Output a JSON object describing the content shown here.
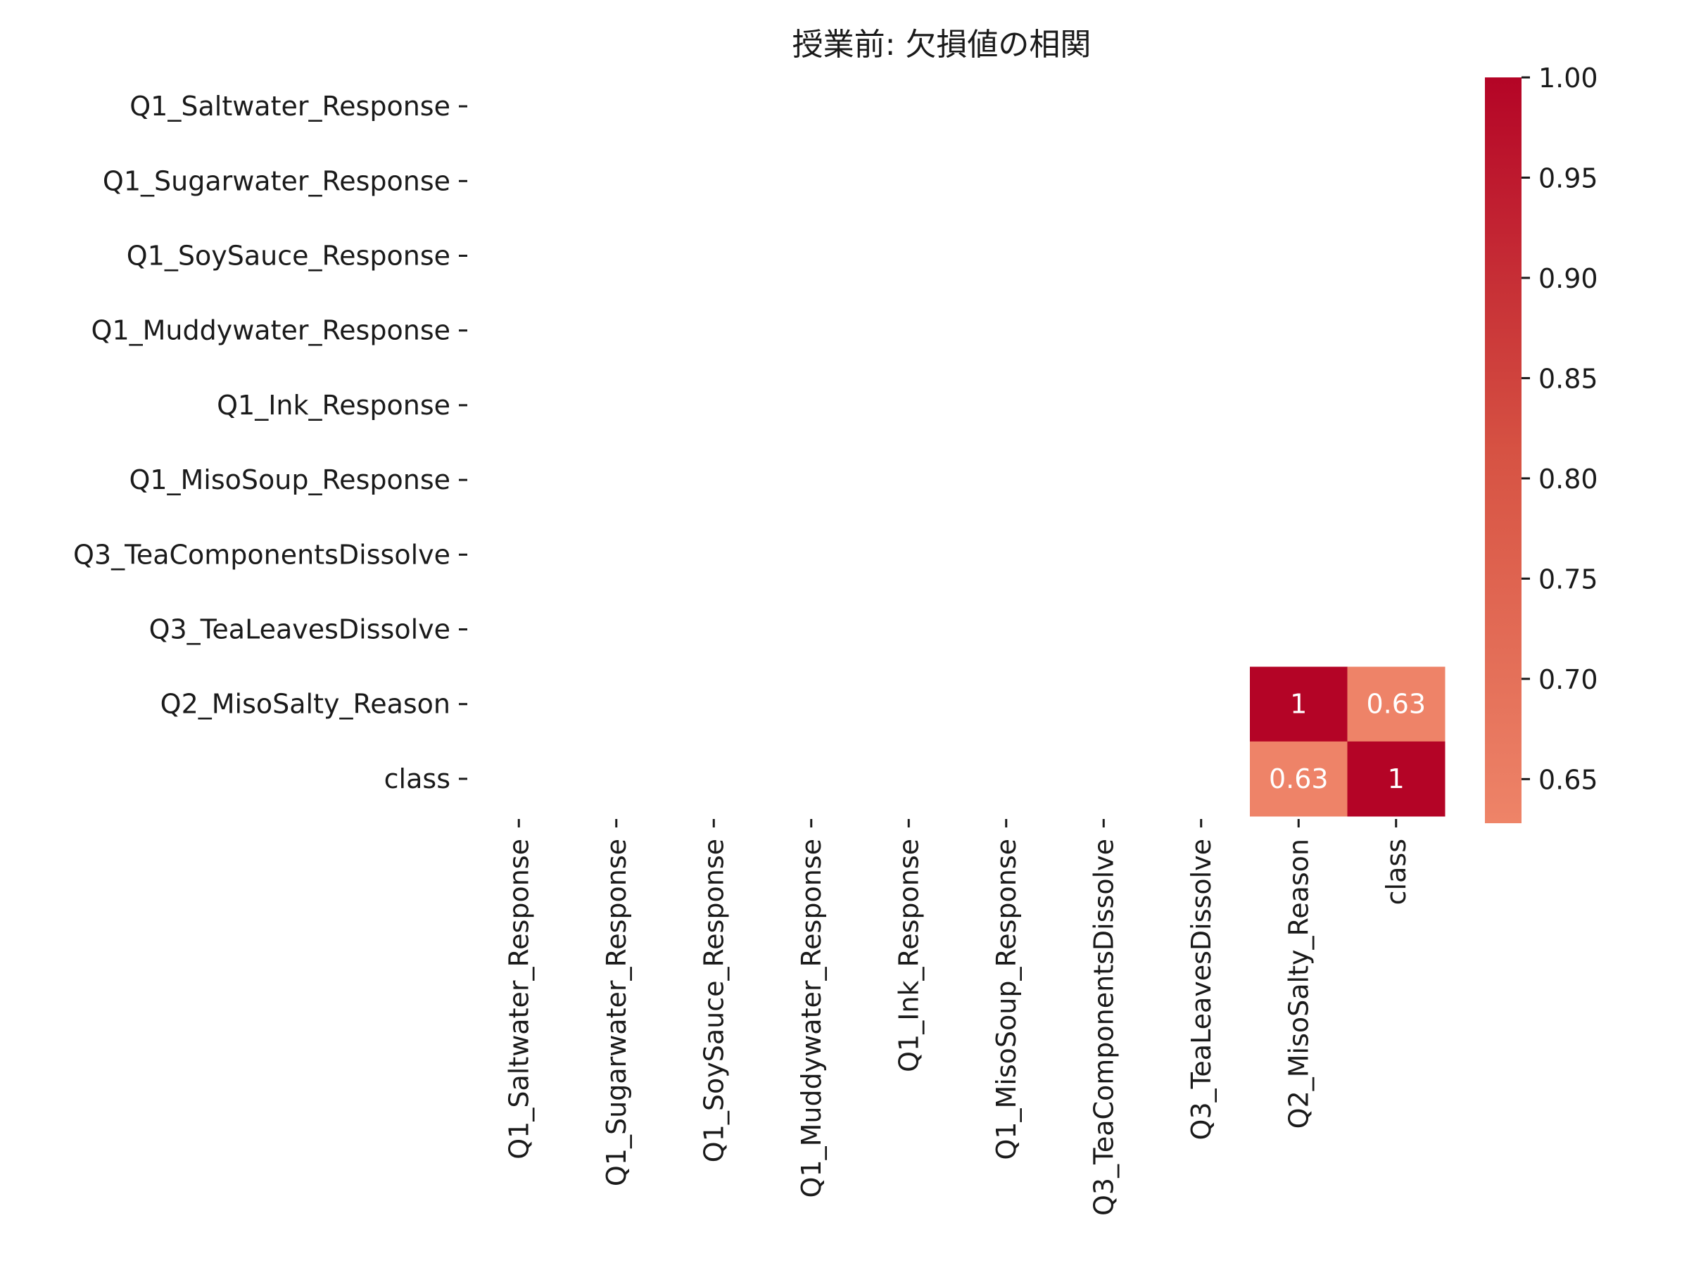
{
  "chart_data": {
    "type": "heatmap",
    "title": "授業前: 欠損値の相関",
    "xlabel": "",
    "ylabel": "",
    "rows": [
      "Q1_Saltwater_Response",
      "Q1_Sugarwater_Response",
      "Q1_SoySauce_Response",
      "Q1_Muddywater_Response",
      "Q1_Ink_Response",
      "Q1_MisoSoup_Response",
      "Q3_TeaComponentsDissolve",
      "Q3_TeaLeavesDissolve",
      "Q2_MisoSalty_Reason",
      "class"
    ],
    "columns": [
      "Q1_Saltwater_Response",
      "Q1_Sugarwater_Response",
      "Q1_SoySauce_Response",
      "Q1_Muddywater_Response",
      "Q1_Ink_Response",
      "Q1_MisoSoup_Response",
      "Q3_TeaComponentsDissolve",
      "Q3_TeaLeavesDissolve",
      "Q2_MisoSalty_Reason",
      "class"
    ],
    "values": [
      [
        null,
        null,
        null,
        null,
        null,
        null,
        null,
        null,
        null,
        null
      ],
      [
        null,
        null,
        null,
        null,
        null,
        null,
        null,
        null,
        null,
        null
      ],
      [
        null,
        null,
        null,
        null,
        null,
        null,
        null,
        null,
        null,
        null
      ],
      [
        null,
        null,
        null,
        null,
        null,
        null,
        null,
        null,
        null,
        null
      ],
      [
        null,
        null,
        null,
        null,
        null,
        null,
        null,
        null,
        null,
        null
      ],
      [
        null,
        null,
        null,
        null,
        null,
        null,
        null,
        null,
        null,
        null
      ],
      [
        null,
        null,
        null,
        null,
        null,
        null,
        null,
        null,
        null,
        null
      ],
      [
        null,
        null,
        null,
        null,
        null,
        null,
        null,
        null,
        null,
        null
      ],
      [
        null,
        null,
        null,
        null,
        null,
        null,
        null,
        null,
        1,
        0.63
      ],
      [
        null,
        null,
        null,
        null,
        null,
        null,
        null,
        null,
        0.63,
        1
      ]
    ],
    "annotations": [
      [
        null,
        null,
        null,
        null,
        null,
        null,
        null,
        null,
        null,
        null
      ],
      [
        null,
        null,
        null,
        null,
        null,
        null,
        null,
        null,
        null,
        null
      ],
      [
        null,
        null,
        null,
        null,
        null,
        null,
        null,
        null,
        null,
        null
      ],
      [
        null,
        null,
        null,
        null,
        null,
        null,
        null,
        null,
        null,
        null
      ],
      [
        null,
        null,
        null,
        null,
        null,
        null,
        null,
        null,
        null,
        null
      ],
      [
        null,
        null,
        null,
        null,
        null,
        null,
        null,
        null,
        null,
        null
      ],
      [
        null,
        null,
        null,
        null,
        null,
        null,
        null,
        null,
        null,
        null
      ],
      [
        null,
        null,
        null,
        null,
        null,
        null,
        null,
        null,
        null,
        null
      ],
      [
        null,
        null,
        null,
        null,
        null,
        null,
        null,
        null,
        "1",
        "0.63"
      ],
      [
        null,
        null,
        null,
        null,
        null,
        null,
        null,
        null,
        "0.63",
        "1"
      ]
    ],
    "colorbar": {
      "min": 0.628,
      "max": 1.0,
      "ticks": [
        0.65,
        0.7,
        0.75,
        0.8,
        0.85,
        0.9,
        0.95,
        1.0
      ],
      "tick_labels": [
        "0.65",
        "0.70",
        "0.75",
        "0.80",
        "0.85",
        "0.90",
        "0.95",
        "1.00"
      ],
      "colormap": "coolwarm (upper half)",
      "color_low": "#ee8468",
      "color_high": "#b40426"
    },
    "annotation_color": "#ffffff",
    "grid": false
  }
}
